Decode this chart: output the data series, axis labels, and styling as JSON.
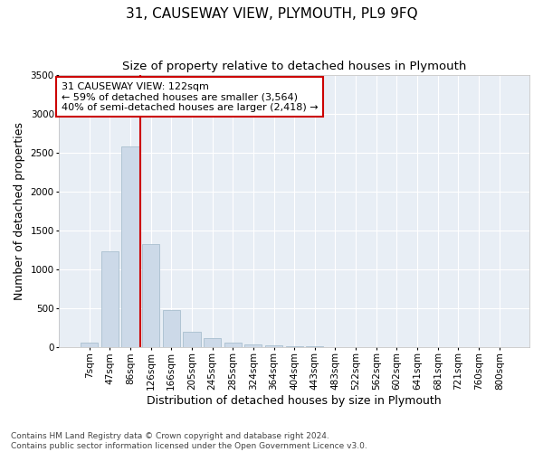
{
  "title": "31, CAUSEWAY VIEW, PLYMOUTH, PL9 9FQ",
  "subtitle": "Size of property relative to detached houses in Plymouth",
  "xlabel": "Distribution of detached houses by size in Plymouth",
  "ylabel": "Number of detached properties",
  "categories": [
    "7sqm",
    "47sqm",
    "86sqm",
    "126sqm",
    "166sqm",
    "205sqm",
    "245sqm",
    "285sqm",
    "324sqm",
    "364sqm",
    "404sqm",
    "443sqm",
    "483sqm",
    "522sqm",
    "562sqm",
    "602sqm",
    "641sqm",
    "681sqm",
    "721sqm",
    "760sqm",
    "800sqm"
  ],
  "values": [
    50,
    1230,
    2580,
    1320,
    480,
    195,
    115,
    55,
    30,
    20,
    10,
    5,
    0,
    0,
    0,
    0,
    0,
    0,
    0,
    0,
    0
  ],
  "bar_color": "#ccd9e8",
  "bar_edge_color": "#a8bece",
  "vline_x_index": 3,
  "vline_color": "#cc0000",
  "annotation_text": "31 CAUSEWAY VIEW: 122sqm\n← 59% of detached houses are smaller (3,564)\n40% of semi-detached houses are larger (2,418) →",
  "annotation_box_color": "#ffffff",
  "annotation_box_edge": "#cc0000",
  "ylim": [
    0,
    3500
  ],
  "yticks": [
    0,
    500,
    1000,
    1500,
    2000,
    2500,
    3000,
    3500
  ],
  "footnote": "Contains HM Land Registry data © Crown copyright and database right 2024.\nContains public sector information licensed under the Open Government Licence v3.0.",
  "fig_bg_color": "#ffffff",
  "plot_bg_color": "#e8eef5",
  "grid_color": "#ffffff",
  "title_fontsize": 11,
  "subtitle_fontsize": 9.5,
  "axis_label_fontsize": 9,
  "tick_fontsize": 7.5,
  "annotation_fontsize": 8,
  "footnote_fontsize": 6.5
}
